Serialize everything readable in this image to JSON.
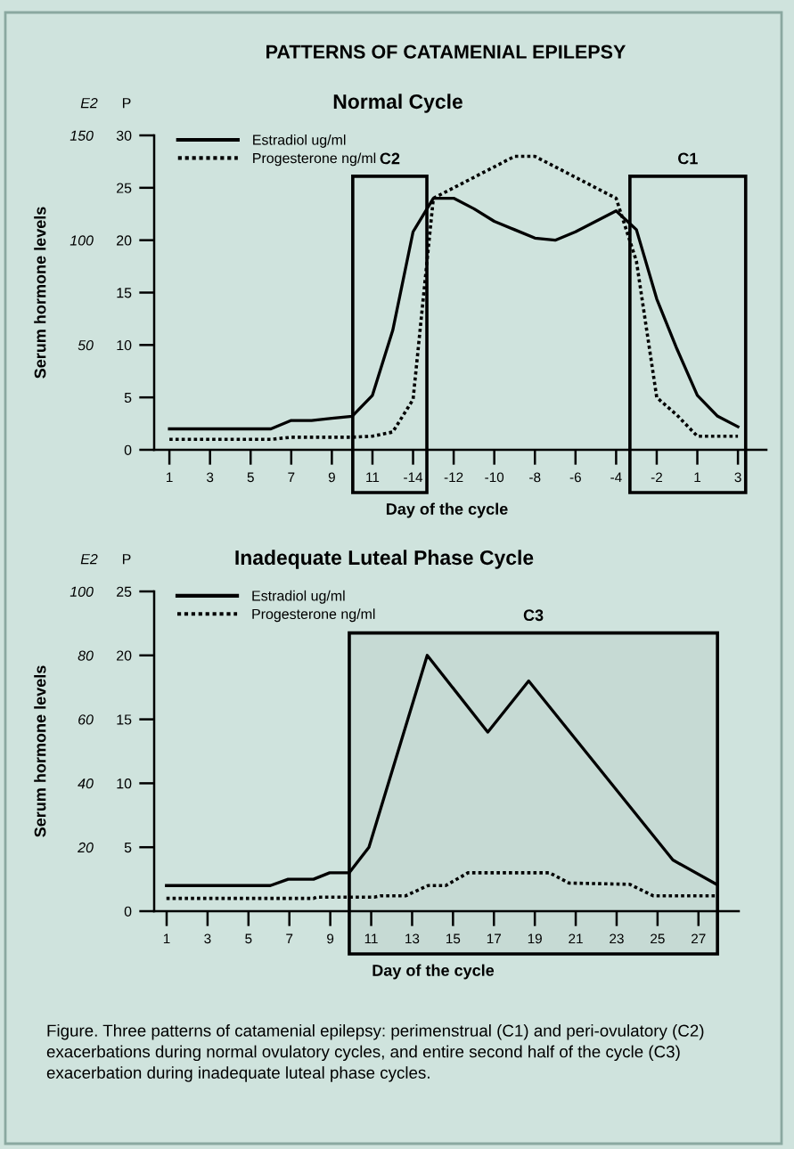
{
  "chart_data": [
    {
      "type": "line",
      "title": "Normal Cycle",
      "xlabel": "Day of the cycle",
      "ylabel": "Serum hormone levels",
      "y2label": "P",
      "annotations": [
        "E2",
        "PATTERNS OF CATAMENIAL EPILEPSY",
        "C2",
        "C1"
      ],
      "categories": [
        "1",
        null,
        "3",
        null,
        "5",
        null,
        "7",
        null,
        "9",
        null,
        "11",
        null,
        "-14",
        null,
        "-12",
        null,
        "-10",
        null,
        "-8",
        null,
        "-6",
        null,
        "-4",
        null,
        "-2",
        null,
        "1",
        null,
        "3"
      ],
      "ylim": [
        0,
        150
      ],
      "y2lim": [
        0,
        30
      ],
      "yticks": [
        50,
        100,
        150
      ],
      "y2ticks": [
        0,
        5,
        10,
        15,
        20,
        25,
        30
      ],
      "legend": "top left",
      "grid": false,
      "marker": "none",
      "series": [
        {
          "name": "Estradiol ug/ml",
          "color": "#000000",
          "line_style": "solid",
          "values": [
            10,
            10,
            10,
            10,
            10,
            10,
            14,
            14,
            15,
            16,
            26,
            57,
            104,
            120,
            120,
            115,
            109,
            105,
            101,
            100,
            104,
            109,
            114,
            105,
            72,
            48,
            26,
            16,
            11
          ]
        },
        {
          "name": "Progesterone ng/ml",
          "color": "#000000",
          "line_style": "dotted",
          "axis": "y2",
          "values": [
            1,
            1,
            1,
            1,
            1,
            1,
            1.2,
            1.2,
            1.2,
            1.2,
            1.3,
            1.7,
            4.8,
            24,
            25,
            26,
            27,
            28,
            28,
            27,
            26,
            25,
            24,
            18,
            5,
            3.3,
            1.3,
            1.3,
            1.3
          ]
        }
      ]
    },
    {
      "type": "line",
      "title": "Inadequate Luteal Phase Cycle",
      "xlabel": "Day of the cycle",
      "ylabel": "Serum hormone levels",
      "y2label": "P",
      "annotations": [
        "E2",
        "Figure. Three patterns of catamenial epilepsy: perimenstrual (C1) and peri-ovulatory (C2) exacerbations during normal ovulatory cycles, and entire second half of the cycle (C3) exacerbation during inadequate luteal phase cycles."
      ],
      "xlim": [
        0.39,
        28.97
      ],
      "ylim": [
        0,
        100
      ],
      "y2lim": [
        0,
        25
      ],
      "xticks": [
        1,
        3,
        5,
        7,
        9,
        11,
        13,
        15,
        17,
        19,
        21,
        23,
        25,
        27
      ],
      "yticks": [
        20,
        40,
        60,
        80,
        100
      ],
      "y2ticks": [
        0,
        5,
        10,
        15,
        20,
        25
      ],
      "legend": "top left",
      "grid": false,
      "marker": "none",
      "series": [
        {
          "name": "Estradiol ug/ml",
          "color": "#000000",
          "line_style": "solid",
          "x": [
            0.99,
            6.07,
            6.94,
            8.18,
            8.97,
            9.92,
            10.89,
            13.74,
            16.7,
            18.7,
            25.75,
            27.85
          ],
          "values": [
            8,
            8,
            10,
            10,
            12,
            12,
            20,
            80,
            56,
            72,
            16,
            8.5
          ]
        },
        {
          "name": "Progesterone ng/ml",
          "color": "#000000",
          "line_style": "dotted",
          "axis": "y2",
          "x": [
            0.99,
            8.18,
            8.32,
            11.15,
            11.44,
            12.68,
            13.77,
            14.64,
            15.73,
            19.72,
            20.67,
            23.64,
            24.8,
            27.85
          ],
          "values": [
            1,
            1,
            1.1,
            1.1,
            1.2,
            1.2,
            2,
            2,
            3,
            3,
            2.2,
            2.1,
            1.2,
            1.2
          ]
        }
      ],
      "bands": [
        {
          "axis": "x",
          "from": 9.93,
          "to": 27.93,
          "label": "C3",
          "color": "#000000"
        }
      ]
    }
  ]
}
